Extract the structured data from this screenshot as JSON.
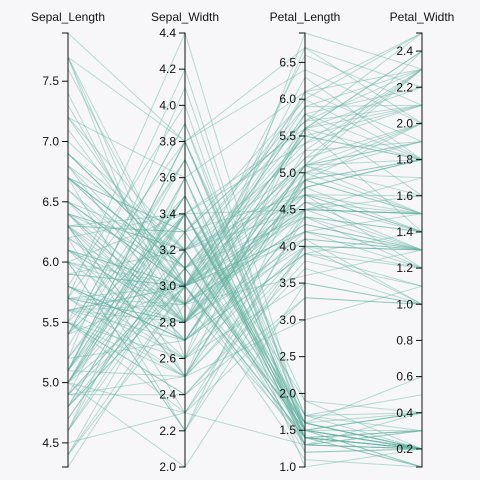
{
  "chart_data": {
    "type": "parallel-coordinates",
    "title": "",
    "line_color": "#69b3a2",
    "dimensions": [
      {
        "name": "Sepal_Length",
        "range": [
          4.3,
          7.9
        ],
        "ticks": [
          "4.5",
          "5.0",
          "5.5",
          "6.0",
          "6.5",
          "7.0",
          "7.5"
        ]
      },
      {
        "name": "Sepal_Width",
        "range": [
          2.0,
          4.4
        ],
        "ticks": [
          "2.0",
          "2.2",
          "2.4",
          "2.6",
          "2.8",
          "3.0",
          "3.2",
          "3.4",
          "3.6",
          "3.8",
          "4.0",
          "4.2",
          "4.4"
        ]
      },
      {
        "name": "Petal_Length",
        "range": [
          1.0,
          6.9
        ],
        "ticks": [
          "1.0",
          "1.5",
          "2.0",
          "2.5",
          "3.0",
          "3.5",
          "4.0",
          "4.5",
          "5.0",
          "5.5",
          "6.0",
          "6.5"
        ]
      },
      {
        "name": "Petal_Width",
        "range": [
          0.1,
          2.5
        ],
        "ticks": [
          "0.2",
          "0.4",
          "0.6",
          "0.8",
          "1.0",
          "1.2",
          "1.4",
          "1.6",
          "1.8",
          "2.0",
          "2.2",
          "2.4"
        ]
      }
    ],
    "records": [
      [
        5.1,
        3.5,
        1.4,
        0.2
      ],
      [
        4.9,
        3.0,
        1.4,
        0.2
      ],
      [
        4.7,
        3.2,
        1.3,
        0.2
      ],
      [
        4.6,
        3.1,
        1.5,
        0.2
      ],
      [
        5.0,
        3.6,
        1.4,
        0.2
      ],
      [
        5.4,
        3.9,
        1.7,
        0.4
      ],
      [
        4.6,
        3.4,
        1.4,
        0.3
      ],
      [
        5.0,
        3.4,
        1.5,
        0.2
      ],
      [
        4.4,
        2.9,
        1.4,
        0.2
      ],
      [
        4.9,
        3.1,
        1.5,
        0.1
      ],
      [
        5.4,
        3.7,
        1.5,
        0.2
      ],
      [
        4.8,
        3.4,
        1.6,
        0.2
      ],
      [
        4.8,
        3.0,
        1.4,
        0.1
      ],
      [
        4.3,
        3.0,
        1.1,
        0.1
      ],
      [
        5.8,
        4.0,
        1.2,
        0.2
      ],
      [
        5.7,
        4.4,
        1.5,
        0.4
      ],
      [
        5.4,
        3.9,
        1.3,
        0.4
      ],
      [
        5.1,
        3.5,
        1.4,
        0.3
      ],
      [
        5.7,
        3.8,
        1.7,
        0.3
      ],
      [
        5.1,
        3.8,
        1.5,
        0.3
      ],
      [
        5.4,
        3.4,
        1.7,
        0.2
      ],
      [
        5.1,
        3.7,
        1.5,
        0.4
      ],
      [
        4.6,
        3.6,
        1.0,
        0.2
      ],
      [
        5.1,
        3.3,
        1.7,
        0.5
      ],
      [
        4.8,
        3.4,
        1.9,
        0.2
      ],
      [
        5.0,
        3.0,
        1.6,
        0.2
      ],
      [
        5.0,
        3.4,
        1.6,
        0.4
      ],
      [
        5.2,
        3.5,
        1.5,
        0.2
      ],
      [
        5.2,
        3.4,
        1.4,
        0.2
      ],
      [
        4.7,
        3.2,
        1.6,
        0.2
      ],
      [
        4.8,
        3.1,
        1.6,
        0.2
      ],
      [
        5.4,
        3.4,
        1.5,
        0.4
      ],
      [
        5.2,
        4.1,
        1.5,
        0.1
      ],
      [
        5.5,
        4.2,
        1.4,
        0.2
      ],
      [
        4.9,
        3.1,
        1.5,
        0.2
      ],
      [
        5.0,
        3.2,
        1.2,
        0.2
      ],
      [
        5.5,
        3.5,
        1.3,
        0.2
      ],
      [
        4.9,
        3.6,
        1.4,
        0.1
      ],
      [
        4.4,
        3.0,
        1.3,
        0.2
      ],
      [
        5.1,
        3.4,
        1.5,
        0.2
      ],
      [
        5.0,
        3.5,
        1.3,
        0.3
      ],
      [
        4.5,
        2.3,
        1.3,
        0.3
      ],
      [
        4.4,
        3.2,
        1.3,
        0.2
      ],
      [
        5.0,
        3.5,
        1.6,
        0.6
      ],
      [
        5.1,
        3.8,
        1.9,
        0.4
      ],
      [
        4.8,
        3.0,
        1.4,
        0.3
      ],
      [
        5.1,
        3.8,
        1.6,
        0.2
      ],
      [
        4.6,
        3.2,
        1.4,
        0.2
      ],
      [
        5.3,
        3.7,
        1.5,
        0.2
      ],
      [
        5.0,
        3.3,
        1.4,
        0.2
      ],
      [
        7.0,
        3.2,
        4.7,
        1.4
      ],
      [
        6.4,
        3.2,
        4.5,
        1.5
      ],
      [
        6.9,
        3.1,
        4.9,
        1.5
      ],
      [
        5.5,
        2.3,
        4.0,
        1.3
      ],
      [
        6.5,
        2.8,
        4.6,
        1.5
      ],
      [
        5.7,
        2.8,
        4.5,
        1.3
      ],
      [
        6.3,
        3.3,
        4.7,
        1.6
      ],
      [
        4.9,
        2.4,
        3.3,
        1.0
      ],
      [
        6.6,
        2.9,
        4.6,
        1.3
      ],
      [
        5.2,
        2.7,
        3.9,
        1.4
      ],
      [
        5.0,
        2.0,
        3.5,
        1.0
      ],
      [
        5.9,
        3.0,
        4.2,
        1.5
      ],
      [
        6.0,
        2.2,
        4.0,
        1.0
      ],
      [
        6.1,
        2.9,
        4.7,
        1.4
      ],
      [
        5.6,
        2.9,
        3.6,
        1.3
      ],
      [
        6.7,
        3.1,
        4.4,
        1.4
      ],
      [
        5.6,
        3.0,
        4.5,
        1.5
      ],
      [
        5.8,
        2.7,
        4.1,
        1.0
      ],
      [
        6.2,
        2.2,
        4.5,
        1.5
      ],
      [
        5.6,
        2.5,
        3.9,
        1.1
      ],
      [
        5.9,
        3.2,
        4.8,
        1.8
      ],
      [
        6.1,
        2.8,
        4.0,
        1.3
      ],
      [
        6.3,
        2.5,
        4.9,
        1.5
      ],
      [
        6.1,
        2.8,
        4.7,
        1.2
      ],
      [
        6.4,
        2.9,
        4.3,
        1.3
      ],
      [
        6.6,
        3.0,
        4.4,
        1.4
      ],
      [
        6.8,
        2.8,
        4.8,
        1.4
      ],
      [
        6.7,
        3.0,
        5.0,
        1.7
      ],
      [
        6.0,
        2.9,
        4.5,
        1.5
      ],
      [
        5.7,
        2.6,
        3.5,
        1.0
      ],
      [
        5.5,
        2.4,
        3.8,
        1.1
      ],
      [
        5.5,
        2.4,
        3.7,
        1.0
      ],
      [
        5.8,
        2.7,
        3.9,
        1.2
      ],
      [
        6.0,
        2.7,
        5.1,
        1.6
      ],
      [
        5.4,
        3.0,
        4.5,
        1.5
      ],
      [
        6.0,
        3.4,
        4.5,
        1.6
      ],
      [
        6.7,
        3.1,
        4.7,
        1.5
      ],
      [
        6.3,
        2.3,
        4.4,
        1.3
      ],
      [
        5.6,
        3.0,
        4.1,
        1.3
      ],
      [
        5.5,
        2.5,
        4.0,
        1.3
      ],
      [
        5.5,
        2.6,
        4.4,
        1.2
      ],
      [
        6.1,
        3.0,
        4.6,
        1.4
      ],
      [
        5.8,
        2.6,
        4.0,
        1.2
      ],
      [
        5.0,
        2.3,
        3.3,
        1.0
      ],
      [
        5.6,
        2.7,
        4.2,
        1.3
      ],
      [
        5.7,
        3.0,
        4.2,
        1.2
      ],
      [
        5.7,
        2.9,
        4.2,
        1.3
      ],
      [
        6.2,
        2.9,
        4.3,
        1.3
      ],
      [
        5.1,
        2.5,
        3.0,
        1.1
      ],
      [
        5.7,
        2.8,
        4.1,
        1.3
      ],
      [
        6.3,
        3.3,
        6.0,
        2.5
      ],
      [
        5.8,
        2.7,
        5.1,
        1.9
      ],
      [
        7.1,
        3.0,
        5.9,
        2.1
      ],
      [
        6.3,
        2.9,
        5.6,
        1.8
      ],
      [
        6.5,
        3.0,
        5.8,
        2.2
      ],
      [
        7.6,
        3.0,
        6.6,
        2.1
      ],
      [
        4.9,
        2.5,
        4.5,
        1.7
      ],
      [
        7.3,
        2.9,
        6.3,
        1.8
      ],
      [
        6.7,
        2.5,
        5.8,
        1.8
      ],
      [
        7.2,
        3.6,
        6.1,
        2.5
      ],
      [
        6.5,
        3.2,
        5.1,
        2.0
      ],
      [
        6.4,
        2.7,
        5.3,
        1.9
      ],
      [
        6.8,
        3.0,
        5.5,
        2.1
      ],
      [
        5.7,
        2.5,
        5.0,
        2.0
      ],
      [
        5.8,
        2.8,
        5.1,
        2.4
      ],
      [
        6.4,
        3.2,
        5.3,
        2.3
      ],
      [
        6.5,
        3.0,
        5.5,
        1.8
      ],
      [
        7.7,
        3.8,
        6.7,
        2.2
      ],
      [
        7.7,
        2.6,
        6.9,
        2.3
      ],
      [
        6.0,
        2.2,
        5.0,
        1.5
      ],
      [
        6.9,
        3.2,
        5.7,
        2.3
      ],
      [
        5.6,
        2.8,
        4.9,
        2.0
      ],
      [
        7.7,
        2.8,
        6.7,
        2.0
      ],
      [
        6.3,
        2.7,
        4.9,
        1.8
      ],
      [
        6.7,
        3.3,
        5.7,
        2.1
      ],
      [
        7.2,
        3.2,
        6.0,
        1.8
      ],
      [
        6.2,
        2.8,
        4.8,
        1.8
      ],
      [
        6.1,
        3.0,
        4.9,
        1.8
      ],
      [
        6.4,
        2.8,
        5.6,
        2.1
      ],
      [
        7.2,
        3.0,
        5.8,
        1.6
      ],
      [
        7.4,
        2.8,
        6.1,
        1.9
      ],
      [
        7.9,
        3.8,
        6.4,
        2.0
      ],
      [
        6.4,
        2.8,
        5.6,
        2.2
      ],
      [
        6.3,
        2.8,
        5.1,
        1.5
      ],
      [
        6.1,
        2.6,
        5.6,
        1.4
      ],
      [
        7.7,
        3.0,
        6.1,
        2.3
      ],
      [
        6.3,
        3.4,
        5.6,
        2.4
      ],
      [
        6.4,
        3.1,
        5.5,
        1.8
      ],
      [
        6.0,
        3.0,
        4.8,
        1.8
      ],
      [
        6.9,
        3.1,
        5.4,
        2.1
      ],
      [
        6.7,
        3.1,
        5.6,
        2.4
      ],
      [
        6.9,
        3.1,
        5.1,
        2.3
      ],
      [
        5.8,
        2.7,
        5.1,
        1.9
      ],
      [
        6.8,
        3.2,
        5.9,
        2.3
      ],
      [
        6.7,
        3.3,
        5.7,
        2.5
      ],
      [
        6.7,
        3.0,
        5.2,
        2.3
      ],
      [
        6.3,
        2.5,
        5.0,
        1.9
      ],
      [
        6.5,
        3.0,
        5.2,
        2.0
      ],
      [
        6.2,
        3.4,
        5.4,
        2.3
      ],
      [
        5.9,
        3.0,
        5.1,
        1.8
      ]
    ]
  }
}
